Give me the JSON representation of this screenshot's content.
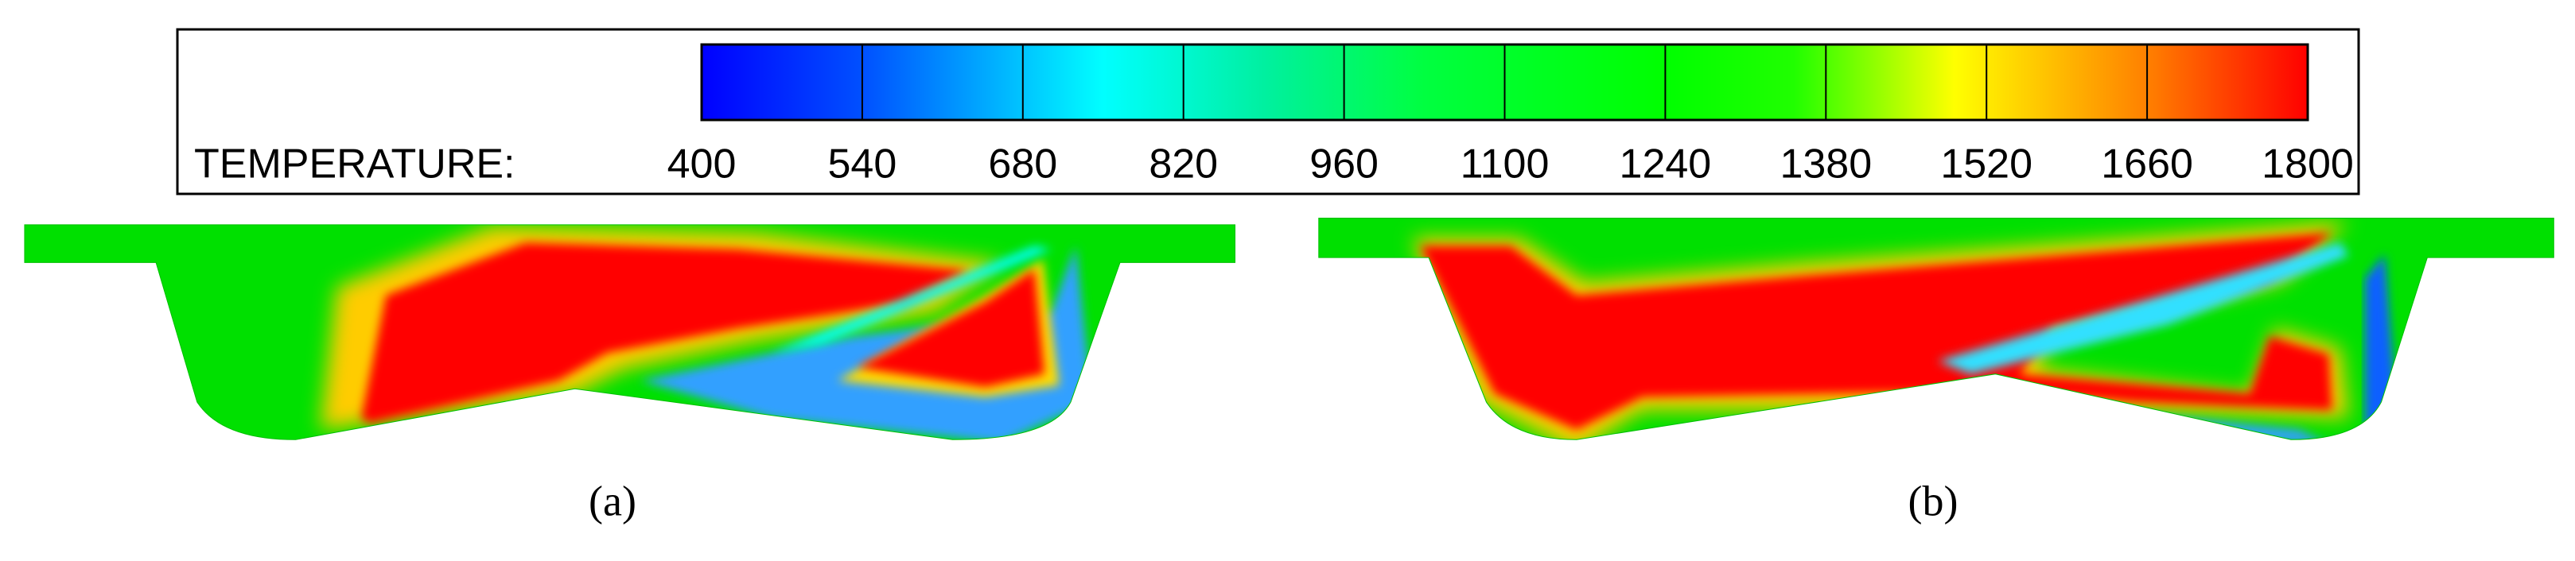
{
  "colorbar": {
    "label": "TEMPERATURE:",
    "range": [
      400,
      1800
    ],
    "ticks": [
      400,
      540,
      680,
      820,
      960,
      1100,
      1240,
      1380,
      1520,
      1660,
      1800
    ]
  },
  "panels": [
    {
      "label": "(a)"
    },
    {
      "label": "(b)"
    }
  ]
}
